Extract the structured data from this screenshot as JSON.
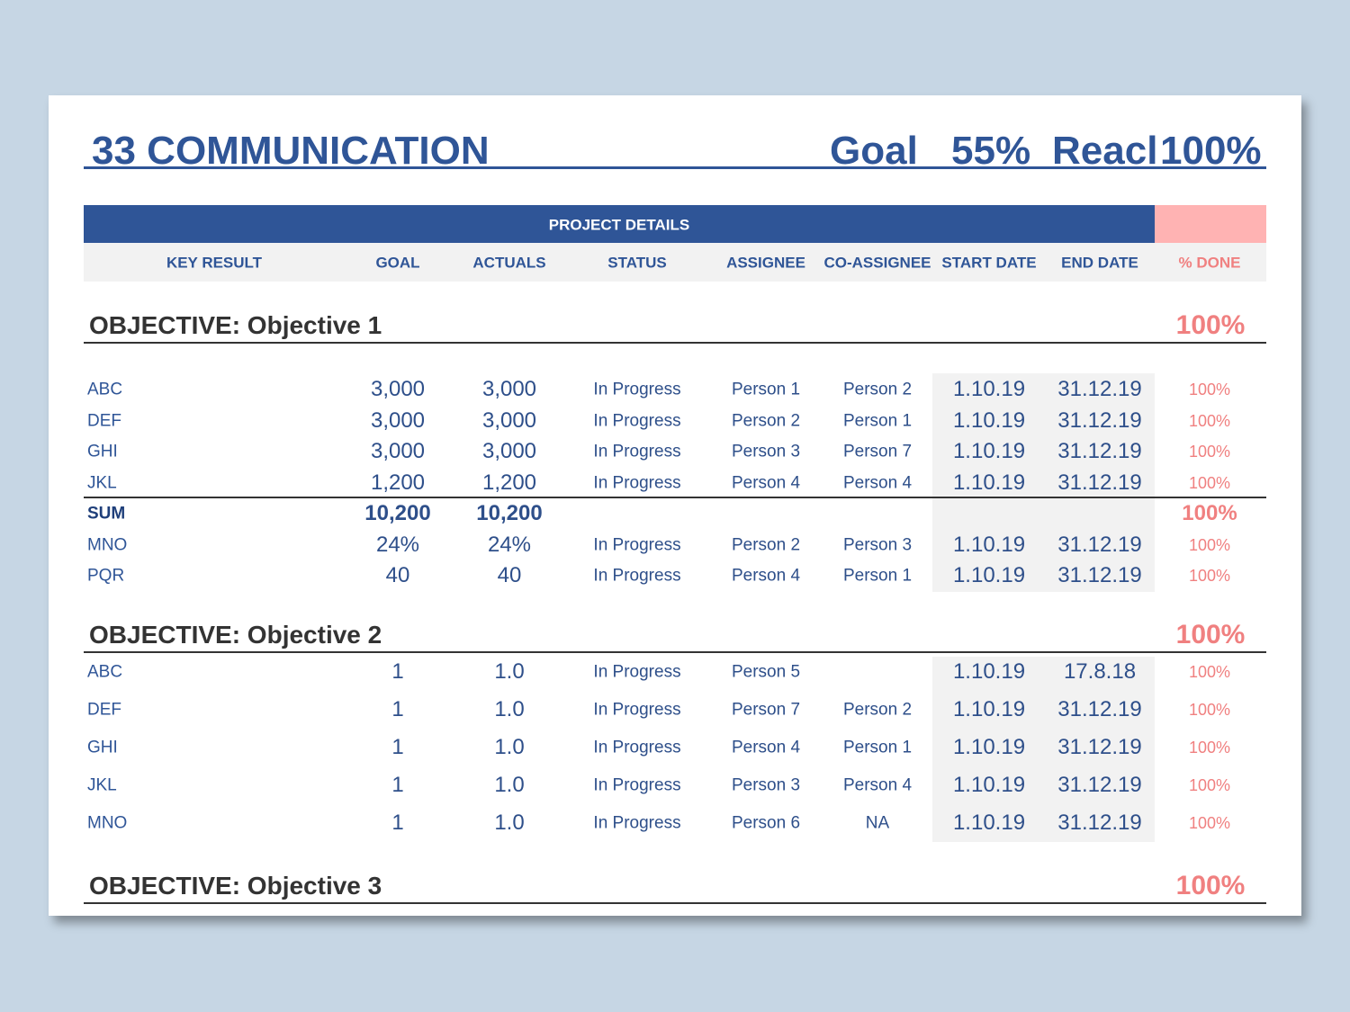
{
  "header": {
    "title": "33 COMMUNICATION",
    "goal_label": "Goal",
    "goal_value": "55%",
    "reach_label": "Reacl",
    "reach_value": "100%"
  },
  "table": {
    "banner": "PROJECT DETAILS",
    "columns": {
      "key": "KEY RESULT",
      "goal": "GOAL",
      "actuals": "ACTUALS",
      "status": "STATUS",
      "assignee": "ASSIGNEE",
      "coassignee": "CO-ASSIGNEE",
      "start": "START DATE",
      "end": "END DATE",
      "done": "% DONE"
    },
    "sections": [
      {
        "title": "OBJECTIVE: Objective 1",
        "percent": "100%",
        "rows": [
          {
            "key": "ABC",
            "goal": "3,000",
            "actuals": "3,000",
            "status": "In Progress",
            "assignee": "Person 1",
            "coassignee": "Person 2",
            "start": "1.10.19",
            "end": "31.12.19",
            "done": "100%"
          },
          {
            "key": "DEF",
            "goal": "3,000",
            "actuals": "3,000",
            "status": "In Progress",
            "assignee": "Person 2",
            "coassignee": "Person 1",
            "start": "1.10.19",
            "end": "31.12.19",
            "done": "100%"
          },
          {
            "key": "GHI",
            "goal": "3,000",
            "actuals": "3,000",
            "status": "In Progress",
            "assignee": "Person 3",
            "coassignee": "Person 7",
            "start": "1.10.19",
            "end": "31.12.19",
            "done": "100%"
          },
          {
            "key": "JKL",
            "goal": "1,200",
            "actuals": "1,200",
            "status": "In Progress",
            "assignee": "Person 4",
            "coassignee": "Person 4",
            "start": "1.10.19",
            "end": "31.12.19",
            "done": "100%"
          },
          {
            "key": "SUM",
            "goal": "10,200",
            "actuals": "10,200",
            "done": "100%"
          },
          {
            "key": "MNO",
            "goal": "24%",
            "actuals": "24%",
            "status": "In Progress",
            "assignee": "Person 2",
            "coassignee": "Person 3",
            "start": "1.10.19",
            "end": "31.12.19",
            "done": "100%"
          },
          {
            "key": "PQR",
            "goal": "40",
            "actuals": "40",
            "status": "In Progress",
            "assignee": "Person 4",
            "coassignee": "Person 1",
            "start": "1.10.19",
            "end": "31.12.19",
            "done": "100%"
          }
        ]
      },
      {
        "title": "OBJECTIVE: Objective 2",
        "percent": "100%",
        "rows": [
          {
            "key": "ABC",
            "goal": "1",
            "actuals": "1.0",
            "status": "In Progress",
            "assignee": "Person 5",
            "start": "1.10.19",
            "end": "17.8.18",
            "done": "100%"
          },
          {
            "key": "DEF",
            "goal": "1",
            "actuals": "1.0",
            "status": "In Progress",
            "assignee": "Person 7",
            "coassignee": "Person 2",
            "start": "1.10.19",
            "end": "31.12.19",
            "done": "100%"
          },
          {
            "key": "GHI",
            "goal": "1",
            "actuals": "1.0",
            "status": "In Progress",
            "assignee": "Person 4",
            "coassignee": "Person 1",
            "start": "1.10.19",
            "end": "31.12.19",
            "done": "100%"
          },
          {
            "key": "JKL",
            "goal": "1",
            "actuals": "1.0",
            "status": "In Progress",
            "assignee": "Person 3",
            "coassignee": "Person 4",
            "start": "1.10.19",
            "end": "31.12.19",
            "done": "100%"
          },
          {
            "key": "MNO",
            "goal": "1",
            "actuals": "1.0",
            "status": "In Progress",
            "assignee": "Person 6",
            "coassignee": "NA",
            "start": "1.10.19",
            "end": "31.12.19",
            "done": "100%"
          }
        ]
      },
      {
        "title": "OBJECTIVE: Objective 3",
        "percent": "100%",
        "rows": []
      }
    ]
  }
}
